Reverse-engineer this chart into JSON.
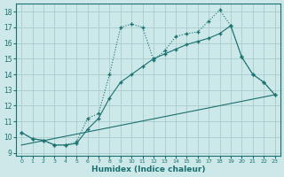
{
  "xlabel": "Humidex (Indice chaleur)",
  "bg_color": "#cce8e8",
  "grid_color": "#aacccc",
  "line_color": "#1a7070",
  "xlim": [
    -0.5,
    23.5
  ],
  "ylim": [
    8.8,
    18.5
  ],
  "xticks": [
    0,
    1,
    2,
    3,
    4,
    5,
    6,
    7,
    8,
    9,
    10,
    11,
    12,
    13,
    14,
    15,
    16,
    17,
    18,
    19,
    20,
    21,
    22,
    23
  ],
  "yticks": [
    9,
    10,
    11,
    12,
    13,
    14,
    15,
    16,
    17,
    18
  ],
  "curve1_x": [
    0,
    1,
    2,
    3,
    4,
    5,
    6,
    7,
    8,
    9,
    10,
    11,
    12,
    13,
    14,
    15,
    16,
    17,
    18,
    19,
    20,
    21,
    22,
    23
  ],
  "curve1_y": [
    10.3,
    9.9,
    9.8,
    9.5,
    9.5,
    9.7,
    11.2,
    11.5,
    14.0,
    17.0,
    17.2,
    17.0,
    14.9,
    15.5,
    16.4,
    16.6,
    16.7,
    17.4,
    18.1,
    17.1,
    15.1,
    14.0,
    13.5,
    12.7
  ],
  "curve2_x": [
    0,
    1,
    2,
    3,
    4,
    5,
    6,
    7,
    8,
    9,
    10,
    11,
    12,
    13,
    14,
    15,
    16,
    17,
    18,
    19,
    20,
    21,
    22,
    23
  ],
  "curve2_y": [
    10.3,
    9.9,
    9.8,
    9.5,
    9.5,
    9.6,
    10.5,
    11.2,
    12.5,
    13.5,
    14.0,
    14.5,
    15.0,
    15.3,
    15.6,
    15.9,
    16.1,
    16.3,
    16.6,
    17.1,
    15.1,
    14.0,
    13.5,
    12.7
  ],
  "line_x": [
    0,
    23
  ],
  "line_y": [
    9.5,
    12.7
  ]
}
